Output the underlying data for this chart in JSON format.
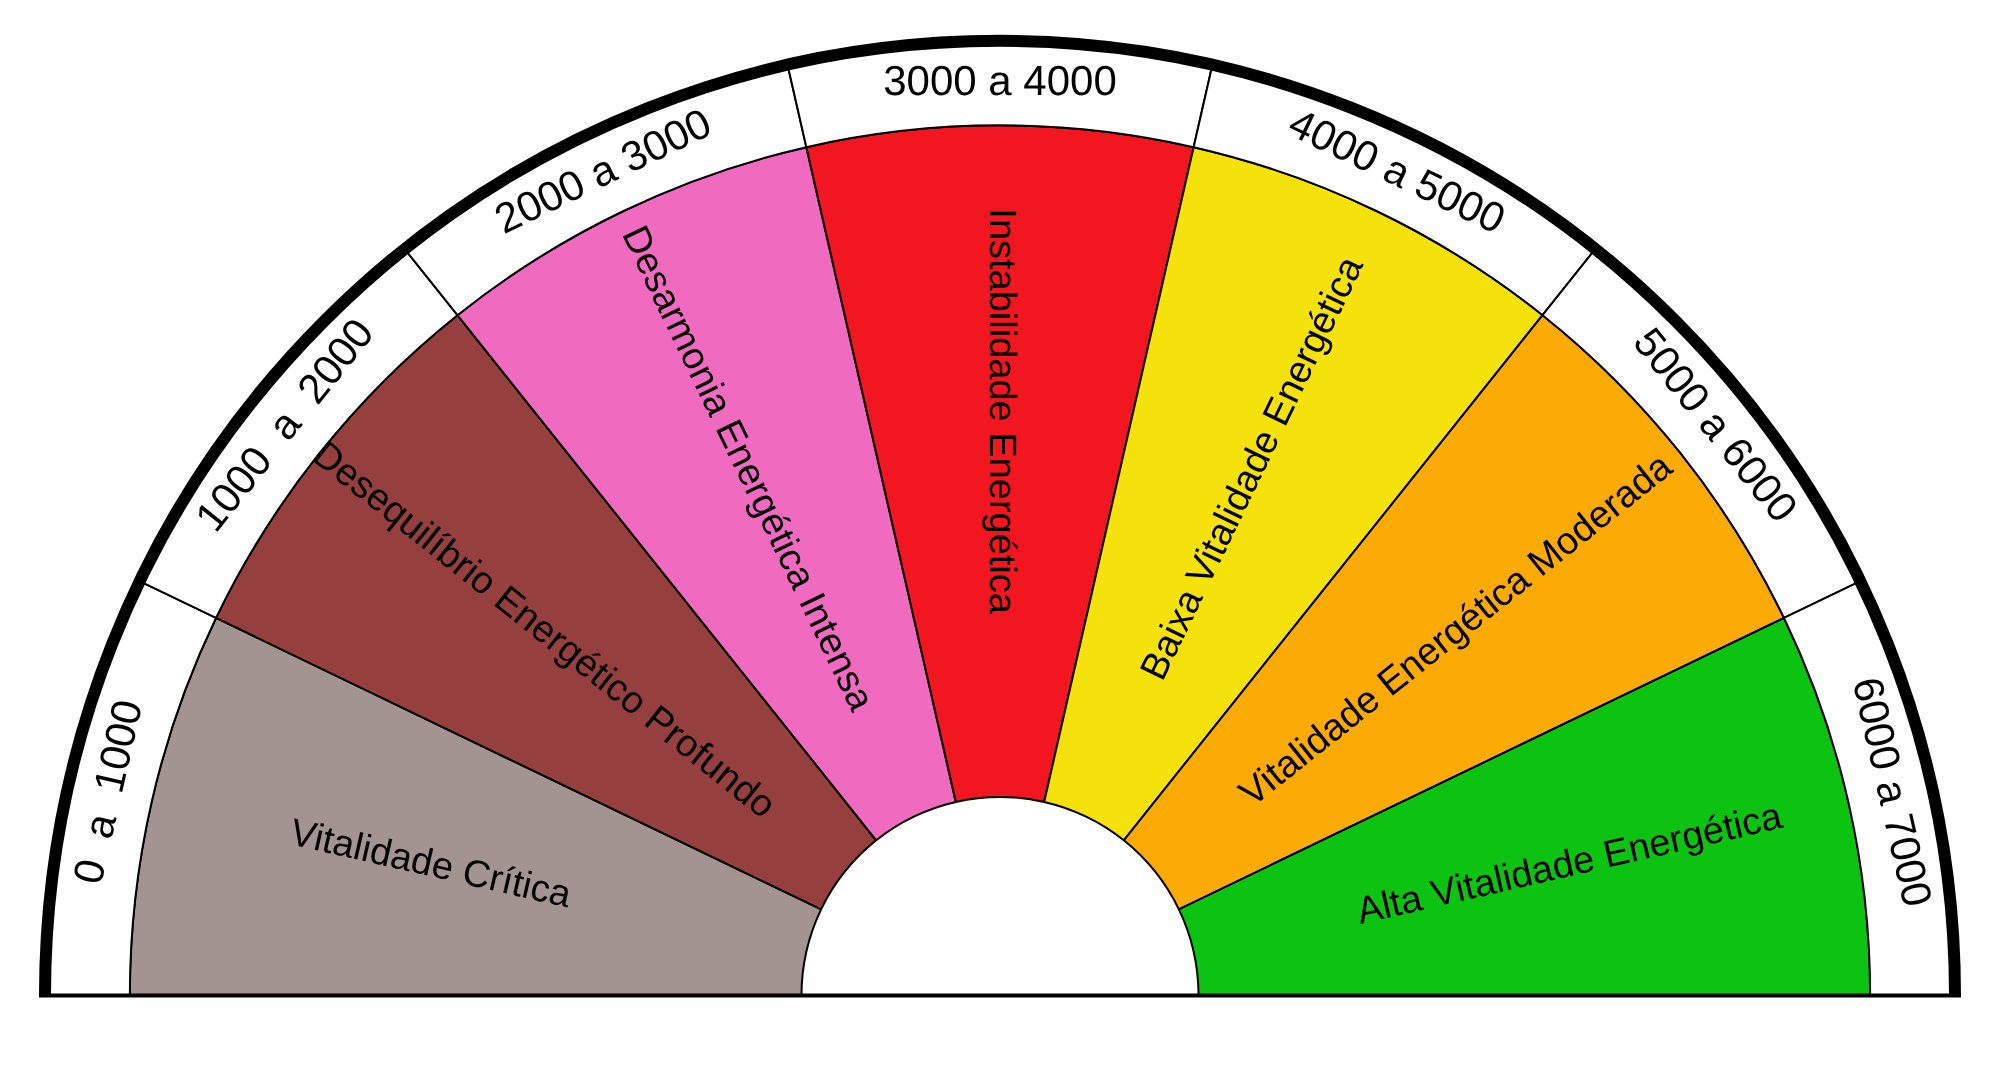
{
  "chart_data": {
    "type": "donut",
    "categories": [
      "Vitalidade Crítica",
      "Desequilíbrio Energético Profundo",
      "Desarmonia Energética Intensa",
      "Instabilidade Energética",
      "Baixa Vitalidade Energética",
      "Vitalidade Energética Moderada",
      "Alta Vitalidade Energética"
    ],
    "values": [
      14.2857,
      14.2857,
      14.2857,
      14.2857,
      14.2857,
      14.2857,
      14.2857
    ],
    "colors": [
      "#a39391",
      "#953f3e",
      "#f06ac0",
      "#f21620",
      "#f5e20c",
      "#fbaa06",
      "#0cc312"
    ],
    "annotations": [
      "0  a  1000",
      "1000  a  2000",
      "2000 a 3000",
      "3000 a 4000",
      "4000 a 5000",
      "5000 a 6000",
      "6000 a 7000"
    ]
  }
}
